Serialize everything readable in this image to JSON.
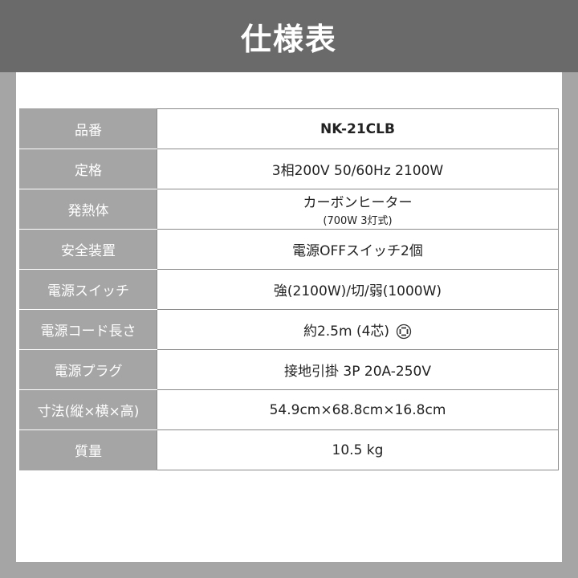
{
  "title": "仕様表",
  "rows": [
    {
      "label": "品番",
      "value": "NK-21CLB"
    },
    {
      "label": "定格",
      "value": "3相200V 50/60Hz 2100W"
    },
    {
      "label": "発熱体",
      "value": "カーボンヒーター",
      "sub": "(700W 3灯式)"
    },
    {
      "label": "安全装置",
      "value": "電源OFFスイッチ2個"
    },
    {
      "label": "電源スイッチ",
      "value": "強(2100W)/切/弱(1000W)"
    },
    {
      "label": "電源コード長さ",
      "value": "約2.5m (4芯)",
      "icon": "plug-outlet-icon"
    },
    {
      "label": "電源プラグ",
      "value": "接地引掛 3P 20A-250V"
    },
    {
      "label": "寸法(縦×横×高)",
      "value": "54.9cm×68.8cm×16.8cm"
    },
    {
      "label": "質量",
      "value": "10.5 kg"
    }
  ]
}
